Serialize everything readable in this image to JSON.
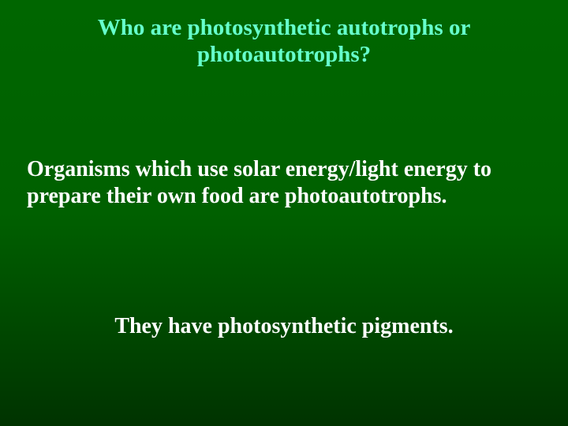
{
  "slide": {
    "background": {
      "gradient_top": "#006600",
      "gradient_mid": "#006000",
      "gradient_lower": "#004a00",
      "gradient_bottom": "#003300"
    },
    "title": {
      "text": "Who are photosynthetic autotrophs or photoautotrophs?",
      "color": "#66ffcc",
      "fontsize": 29,
      "font_weight": "bold",
      "font_family": "Times New Roman"
    },
    "body1": {
      "text": "Organisms which use solar energy/light energy to prepare their own food are photoautotrophs.",
      "color": "#ffffff",
      "fontsize": 28,
      "font_weight": "bold",
      "font_family": "Times New Roman"
    },
    "body2": {
      "text": "They have photosynthetic pigments.",
      "color": "#ffffff",
      "fontsize": 28,
      "font_weight": "bold",
      "font_family": "Times New Roman"
    }
  }
}
